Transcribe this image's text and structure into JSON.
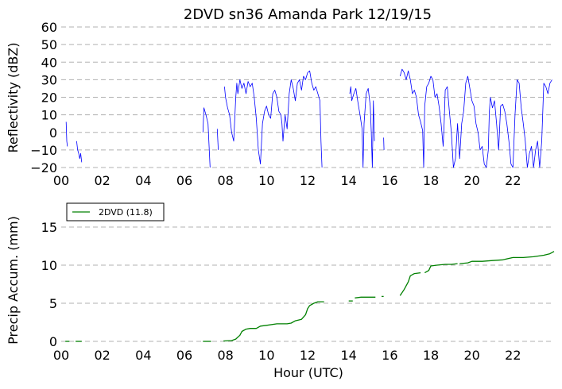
{
  "chart_data": [
    {
      "type": "line",
      "title": "2DVD sn36 Amanda Park 12/19/15",
      "xlabel": "",
      "ylabel": "Reflectivity (dBZ)",
      "xlim": [
        0,
        24
      ],
      "ylim": [
        -20,
        60
      ],
      "x_ticks": [
        0,
        2,
        4,
        6,
        8,
        10,
        12,
        14,
        16,
        18,
        20,
        22
      ],
      "x_tick_labels": [
        "00",
        "02",
        "04",
        "06",
        "08",
        "10",
        "12",
        "14",
        "16",
        "18",
        "20",
        "22"
      ],
      "y_ticks": [
        -20,
        -10,
        0,
        10,
        20,
        30,
        40,
        50,
        60
      ],
      "y_tick_labels": [
        "−20",
        "−10",
        "0",
        "10",
        "20",
        "30",
        "40",
        "50",
        "60"
      ],
      "grid": "horizontal-dashed",
      "color": "#0000ff",
      "series": [
        {
          "segments": [
            [
              [
                0.24,
                6
              ],
              [
                0.27,
                -5
              ],
              [
                0.3,
                -8
              ]
            ],
            [
              [
                0.75,
                -5
              ],
              [
                0.8,
                -10
              ],
              [
                0.85,
                -12
              ],
              [
                0.9,
                -15
              ],
              [
                0.95,
                -12
              ],
              [
                1.0,
                -17
              ]
            ],
            [
              [
                6.9,
                0
              ],
              [
                6.95,
                14
              ],
              [
                7.05,
                10
              ],
              [
                7.15,
                5
              ],
              [
                7.25,
                -20
              ]
            ],
            [
              [
                7.6,
                2
              ],
              [
                7.65,
                -10
              ]
            ],
            [
              [
                7.95,
                26
              ],
              [
                8.0,
                20
              ],
              [
                8.1,
                14
              ],
              [
                8.2,
                10
              ],
              [
                8.3,
                0
              ],
              [
                8.4,
                -5
              ],
              [
                8.5,
                20
              ],
              [
                8.55,
                28
              ],
              [
                8.6,
                22
              ],
              [
                8.7,
                30
              ],
              [
                8.8,
                25
              ],
              [
                8.9,
                28
              ],
              [
                9.0,
                22
              ],
              [
                9.1,
                29
              ],
              [
                9.2,
                26
              ],
              [
                9.3,
                28
              ],
              [
                9.4,
                20
              ],
              [
                9.5,
                8
              ],
              [
                9.6,
                -10
              ],
              [
                9.7,
                -18
              ],
              [
                9.8,
                5
              ],
              [
                9.9,
                12
              ],
              [
                10.0,
                15
              ],
              [
                10.1,
                10
              ],
              [
                10.2,
                8
              ],
              [
                10.3,
                22
              ],
              [
                10.4,
                24
              ],
              [
                10.5,
                20
              ],
              [
                10.6,
                12
              ],
              [
                10.7,
                10
              ],
              [
                10.75,
                5
              ],
              [
                10.8,
                -5
              ],
              [
                10.9,
                10
              ],
              [
                11.0,
                2
              ],
              [
                11.1,
                22
              ],
              [
                11.2,
                30
              ],
              [
                11.3,
                25
              ],
              [
                11.4,
                18
              ],
              [
                11.5,
                28
              ],
              [
                11.6,
                30
              ],
              [
                11.7,
                24
              ],
              [
                11.8,
                32
              ],
              [
                11.9,
                30
              ],
              [
                12.0,
                34
              ],
              [
                12.1,
                35
              ],
              [
                12.2,
                28
              ],
              [
                12.3,
                24
              ],
              [
                12.4,
                26
              ],
              [
                12.5,
                22
              ],
              [
                12.6,
                18
              ],
              [
                12.65,
                -5
              ],
              [
                12.7,
                -20
              ]
            ],
            [
              [
                14.05,
                22
              ],
              [
                14.1,
                26
              ],
              [
                14.15,
                18
              ],
              [
                14.25,
                22
              ],
              [
                14.35,
                25
              ],
              [
                14.45,
                17
              ],
              [
                14.55,
                10
              ],
              [
                14.65,
                2
              ],
              [
                14.7,
                -20
              ],
              [
                14.75,
                5
              ],
              [
                14.85,
                22
              ],
              [
                14.95,
                25
              ],
              [
                15.05,
                15
              ],
              [
                15.1,
                0
              ],
              [
                15.15,
                -20
              ],
              [
                15.2,
                18
              ],
              [
                15.25,
                -5
              ]
            ],
            [
              [
                15.7,
                -3
              ],
              [
                15.72,
                -10
              ]
            ],
            [
              [
                16.5,
                32
              ],
              [
                16.6,
                36
              ],
              [
                16.7,
                34
              ],
              [
                16.8,
                30
              ],
              [
                16.9,
                35
              ],
              [
                17.0,
                30
              ],
              [
                17.1,
                22
              ],
              [
                17.2,
                24
              ],
              [
                17.3,
                20
              ],
              [
                17.4,
                10
              ],
              [
                17.5,
                6
              ],
              [
                17.6,
                1
              ],
              [
                17.65,
                -20
              ],
              [
                17.7,
                15
              ],
              [
                17.8,
                26
              ],
              [
                17.9,
                28
              ],
              [
                18.0,
                32
              ],
              [
                18.1,
                30
              ],
              [
                18.2,
                20
              ],
              [
                18.3,
                22
              ],
              [
                18.4,
                15
              ],
              [
                18.5,
                5
              ],
              [
                18.6,
                -8
              ],
              [
                18.65,
                6
              ],
              [
                18.7,
                24
              ],
              [
                18.8,
                26
              ],
              [
                18.9,
                12
              ],
              [
                19.0,
                0
              ],
              [
                19.1,
                -20
              ],
              [
                19.2,
                -15
              ],
              [
                19.3,
                5
              ],
              [
                19.4,
                -15
              ],
              [
                19.5,
                5
              ],
              [
                19.6,
                12
              ],
              [
                19.7,
                28
              ],
              [
                19.8,
                32
              ],
              [
                19.9,
                25
              ],
              [
                20.0,
                18
              ],
              [
                20.1,
                15
              ],
              [
                20.2,
                5
              ],
              [
                20.3,
                0
              ],
              [
                20.4,
                -10
              ],
              [
                20.5,
                -8
              ],
              [
                20.6,
                -18
              ],
              [
                20.7,
                -20
              ],
              [
                20.8,
                -10
              ],
              [
                20.85,
                12
              ],
              [
                20.9,
                20
              ],
              [
                21.0,
                14
              ],
              [
                21.1,
                18
              ],
              [
                21.2,
                5
              ],
              [
                21.3,
                -10
              ],
              [
                21.4,
                15
              ],
              [
                21.5,
                16
              ],
              [
                21.6,
                12
              ],
              [
                21.7,
                5
              ],
              [
                21.8,
                -5
              ],
              [
                21.9,
                -18
              ],
              [
                22.0,
                -20
              ],
              [
                22.1,
                10
              ],
              [
                22.2,
                30
              ],
              [
                22.3,
                28
              ],
              [
                22.4,
                14
              ],
              [
                22.5,
                5
              ],
              [
                22.6,
                -5
              ],
              [
                22.7,
                -20
              ],
              [
                22.8,
                -12
              ],
              [
                22.9,
                -8
              ],
              [
                23.0,
                -20
              ],
              [
                23.1,
                -10
              ],
              [
                23.2,
                -5
              ],
              [
                23.3,
                -20
              ],
              [
                23.4,
                -5
              ],
              [
                23.5,
                28
              ],
              [
                23.6,
                26
              ],
              [
                23.7,
                22
              ],
              [
                23.8,
                28
              ],
              [
                23.9,
                30
              ]
            ]
          ]
        }
      ]
    },
    {
      "type": "line",
      "title": "",
      "xlabel": "Hour (UTC)",
      "ylabel": "Precip Accum. (mm)",
      "xlim": [
        0,
        24
      ],
      "ylim": [
        0,
        20
      ],
      "x_ticks": [
        0,
        2,
        4,
        6,
        8,
        10,
        12,
        14,
        16,
        18,
        20,
        22
      ],
      "x_tick_labels": [
        "00",
        "02",
        "04",
        "06",
        "08",
        "10",
        "12",
        "14",
        "16",
        "18",
        "20",
        "22"
      ],
      "y_ticks": [
        0,
        5,
        10,
        15
      ],
      "y_tick_labels": [
        "0",
        "5",
        "10",
        "15"
      ],
      "grid": "horizontal-dashed",
      "color": "#008000",
      "legend_position": "top-left",
      "series": [
        {
          "name": "2DVD (11.8)",
          "segments": [
            [
              [
                0.2,
                0
              ],
              [
                0.4,
                0
              ]
            ],
            [
              [
                0.7,
                0
              ],
              [
                1.0,
                0
              ]
            ],
            [
              [
                6.9,
                0
              ],
              [
                7.3,
                0
              ]
            ],
            [
              [
                7.9,
                0.05
              ],
              [
                8.3,
                0.1
              ],
              [
                8.5,
                0.3
              ],
              [
                8.7,
                0.8
              ],
              [
                8.8,
                1.3
              ],
              [
                9.0,
                1.6
              ],
              [
                9.2,
                1.7
              ],
              [
                9.5,
                1.7
              ],
              [
                9.7,
                2.0
              ],
              [
                10.0,
                2.1
              ],
              [
                10.5,
                2.3
              ],
              [
                11.0,
                2.3
              ],
              [
                11.2,
                2.4
              ],
              [
                11.4,
                2.7
              ],
              [
                11.7,
                2.9
              ],
              [
                11.9,
                3.5
              ],
              [
                12.0,
                4.3
              ],
              [
                12.1,
                4.7
              ],
              [
                12.3,
                5.0
              ],
              [
                12.5,
                5.2
              ],
              [
                12.8,
                5.2
              ]
            ],
            [
              [
                14.0,
                5.3
              ],
              [
                14.2,
                5.3
              ]
            ],
            [
              [
                14.3,
                5.7
              ],
              [
                14.6,
                5.8
              ],
              [
                15.0,
                5.8
              ],
              [
                15.3,
                5.8
              ]
            ],
            [
              [
                15.6,
                5.9
              ],
              [
                15.7,
                5.9
              ]
            ],
            [
              [
                16.5,
                6.0
              ],
              [
                16.7,
                6.8
              ],
              [
                16.9,
                7.8
              ],
              [
                17.0,
                8.6
              ],
              [
                17.2,
                8.9
              ],
              [
                17.5,
                9.0
              ]
            ],
            [
              [
                17.7,
                9.0
              ],
              [
                17.9,
                9.3
              ],
              [
                18.0,
                9.9
              ],
              [
                18.3,
                10.0
              ],
              [
                18.7,
                10.1
              ],
              [
                19.0,
                10.1
              ],
              [
                19.3,
                10.2
              ]
            ],
            [
              [
                19.4,
                10.2
              ],
              [
                19.8,
                10.3
              ],
              [
                20.0,
                10.5
              ],
              [
                20.5,
                10.5
              ],
              [
                21.0,
                10.6
              ],
              [
                21.5,
                10.7
              ],
              [
                22.0,
                11.0
              ],
              [
                22.5,
                11.0
              ],
              [
                23.0,
                11.1
              ],
              [
                23.5,
                11.3
              ],
              [
                23.8,
                11.5
              ],
              [
                24.0,
                11.8
              ]
            ]
          ]
        }
      ]
    }
  ]
}
